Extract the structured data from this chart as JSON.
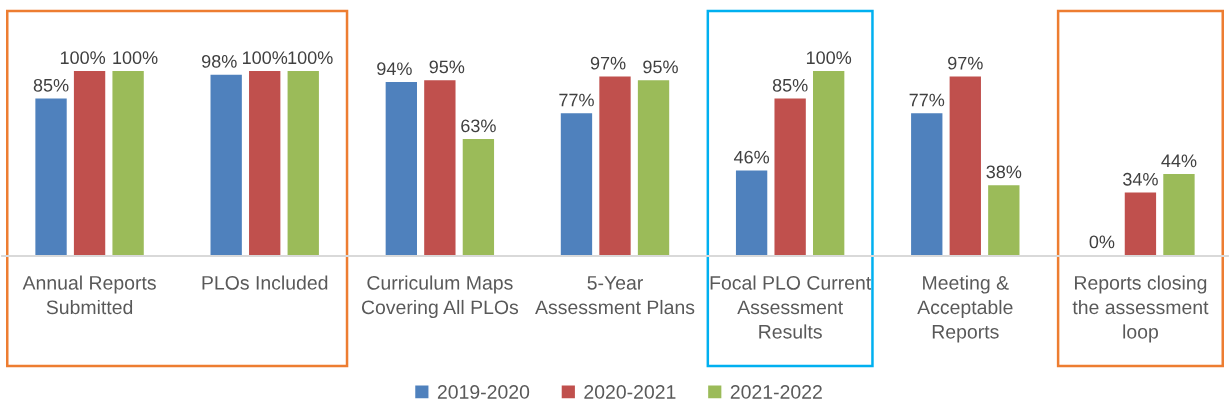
{
  "chart_data": {
    "type": "bar",
    "categories": [
      "Annual Reports\nSubmitted",
      "PLOs Included",
      "Curriculum Maps\nCovering All PLOs",
      "5-Year\nAssessment Plans",
      "Focal PLO Current\nAssessment\nResults",
      "Meeting &\nAcceptable\nReports",
      "Reports closing\nthe assessment\nloop"
    ],
    "series": [
      {
        "name": "2019-2020",
        "color": "#4f81bd",
        "values": [
          85,
          98,
          94,
          77,
          46,
          77,
          0
        ],
        "value_labels": [
          "85%",
          "98%",
          "94%",
          "77%",
          "46%",
          "77%",
          "0%"
        ]
      },
      {
        "name": "2020-2021",
        "color": "#c0504d",
        "values": [
          100,
          100,
          95,
          97,
          85,
          97,
          34
        ],
        "value_labels": [
          "100%",
          "100%",
          "95%",
          "97%",
          "85%",
          "97%",
          "34%"
        ]
      },
      {
        "name": "2021-2022",
        "color": "#9bbb59",
        "values": [
          100,
          100,
          63,
          95,
          100,
          38,
          44
        ],
        "value_labels": [
          "100%",
          "100%",
          "63%",
          "95%",
          "100%",
          "38%",
          "44%"
        ]
      }
    ],
    "legend": "bottom",
    "tick_labels": "x"
  }
}
